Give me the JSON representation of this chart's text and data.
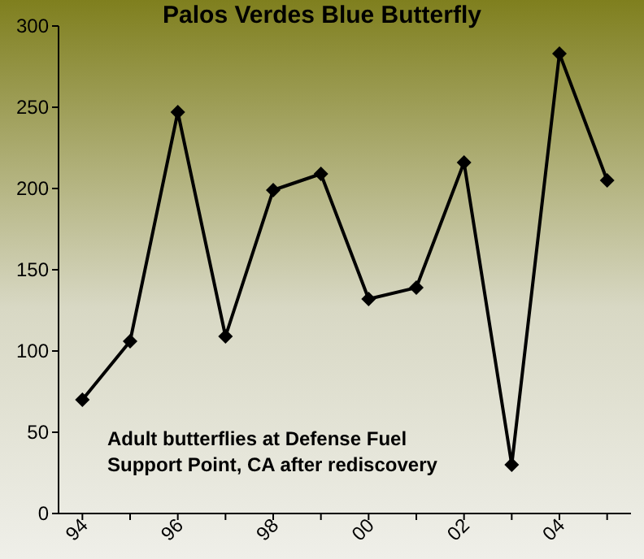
{
  "chart_data": {
    "type": "line",
    "title": "Palos Verdes Blue Butterfly",
    "categories": [
      "94",
      null,
      "96",
      null,
      "98",
      null,
      "00",
      null,
      "02",
      null,
      "04",
      null
    ],
    "series": [
      {
        "color": "#000000",
        "values": [
          70,
          106,
          247,
          109,
          199,
          209,
          132,
          139,
          216,
          30,
          283,
          205
        ]
      }
    ],
    "ylim": [
      0,
      300
    ],
    "yticks": [
      0,
      50,
      100,
      150,
      200,
      250,
      300
    ],
    "grid": false,
    "marker": "diamond",
    "line_style": "solid",
    "annotations": [
      "Adult butterflies at Defense Fuel Support Point, CA after rediscovery"
    ]
  }
}
